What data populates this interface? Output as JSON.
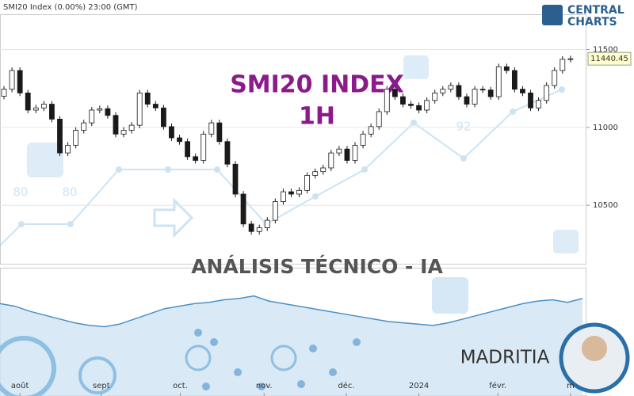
{
  "header": "SMI20 Index  (0.00%)  23:00 (GMT)",
  "brand": {
    "line1": "CENTRAL",
    "line2": "CHARTS"
  },
  "banner": "ANÁLISIS TÉCNICO - IA",
  "author": "MADRITIA",
  "watermark": {
    "labels": [
      "80",
      "80",
      "92"
    ]
  },
  "chart_data": [
    {
      "type": "candlestick",
      "title": "SMI20 INDEX",
      "subtitle": "1H",
      "up_color": "#ffffff",
      "down_color": "#1a1a1a",
      "title_color": "#8b1a8b",
      "open": [
        11200,
        11245,
        11365,
        11221,
        11111,
        11125,
        11149,
        11053,
        10836,
        10885,
        10981,
        11029,
        11111,
        11120,
        11077,
        10957,
        10981,
        11014,
        11221,
        11149,
        11125,
        11005,
        10933,
        10909,
        10812,
        10788,
        10957,
        11029,
        10909,
        10764,
        10572,
        10380,
        10332,
        10356,
        10404,
        10524,
        10587,
        10572,
        10596,
        10692,
        10716,
        10740,
        10836,
        10861,
        10788,
        10885,
        10957,
        11005,
        11101,
        11245,
        11197,
        11149,
        11140,
        11111,
        11173,
        11221,
        11245,
        11269,
        11197,
        11149,
        11245,
        11240,
        11197,
        11389,
        11365,
        11245,
        11221,
        11125,
        11173,
        11269,
        11365,
        11437
      ],
      "high": [
        11265,
        11385,
        11385,
        11241,
        11145,
        11169,
        11169,
        11073,
        10905,
        11001,
        11049,
        11131,
        11140,
        11140,
        11097,
        11001,
        11034,
        11241,
        11241,
        11169,
        11145,
        11025,
        10953,
        10929,
        10832,
        10977,
        11049,
        11049,
        10929,
        10784,
        10592,
        10400,
        10376,
        10424,
        10544,
        10607,
        10607,
        10616,
        10712,
        10736,
        10760,
        10856,
        10881,
        10881,
        10905,
        10977,
        11025,
        11121,
        11265,
        11265,
        11217,
        11169,
        11160,
        11193,
        11241,
        11265,
        11289,
        11289,
        11217,
        11265,
        11265,
        11260,
        11409,
        11409,
        11385,
        11265,
        11241,
        11193,
        11289,
        11385,
        11457,
        11460
      ],
      "low": [
        11180,
        11225,
        11201,
        11091,
        11091,
        11105,
        11033,
        10816,
        10816,
        10865,
        10961,
        11009,
        11091,
        11057,
        10937,
        10937,
        10961,
        10994,
        11129,
        11105,
        10985,
        10913,
        10889,
        10792,
        10768,
        10768,
        10937,
        10889,
        10744,
        10552,
        10360,
        10312,
        10312,
        10336,
        10384,
        10504,
        10552,
        10552,
        10576,
        10672,
        10696,
        10720,
        10816,
        10768,
        10768,
        10865,
        10937,
        10985,
        11081,
        11177,
        11129,
        11120,
        11091,
        11091,
        11153,
        11201,
        11225,
        11177,
        11129,
        11129,
        11220,
        11177,
        11177,
        11345,
        11225,
        11201,
        11105,
        11105,
        11153,
        11249,
        11345,
        11417
      ],
      "close": [
        11245,
        11365,
        11221,
        11111,
        11125,
        11149,
        11053,
        10836,
        10885,
        10981,
        11029,
        11111,
        11120,
        11077,
        10957,
        10981,
        11014,
        11221,
        11149,
        11125,
        11005,
        10933,
        10909,
        10812,
        10788,
        10957,
        11029,
        10909,
        10764,
        10572,
        10380,
        10332,
        10356,
        10404,
        10524,
        10587,
        10572,
        10596,
        10692,
        10716,
        10740,
        10836,
        10861,
        10788,
        10885,
        10957,
        11005,
        11101,
        11245,
        11197,
        11149,
        11140,
        11111,
        11173,
        11221,
        11245,
        11269,
        11197,
        11149,
        11245,
        11240,
        11197,
        11389,
        11365,
        11245,
        11221,
        11125,
        11173,
        11269,
        11365,
        11437,
        11440.45
      ],
      "xlim": [
        -0.5,
        73
      ],
      "xticks": [
        {
          "value": 2,
          "label": "août"
        },
        {
          "value": 12.2,
          "label": "sept"
        },
        {
          "value": 22.1,
          "label": "oct."
        },
        {
          "value": 32.6,
          "label": "nov."
        },
        {
          "value": 42.9,
          "label": "déc."
        },
        {
          "value": 52,
          "label": "2024"
        },
        {
          "value": 61.9,
          "label": "févr."
        },
        {
          "value": 71,
          "label": "m"
        }
      ],
      "ylim": [
        10125,
        11726
      ],
      "yticks": [
        10500,
        11000,
        11500
      ],
      "grid": true
    },
    {
      "type": "area",
      "color": "#cfe3f3",
      "line_color": "#4a90c8",
      "values": [
        72,
        70,
        66,
        63,
        60,
        57,
        55,
        54,
        56,
        60,
        64,
        68,
        70,
        72,
        73,
        75,
        76,
        78,
        74,
        72,
        70,
        68,
        66,
        64,
        62,
        60,
        58,
        57,
        56,
        55,
        57,
        60,
        63,
        66,
        69,
        72,
        74,
        75,
        73,
        76
      ],
      "ylim": [
        0,
        100
      ]
    }
  ]
}
